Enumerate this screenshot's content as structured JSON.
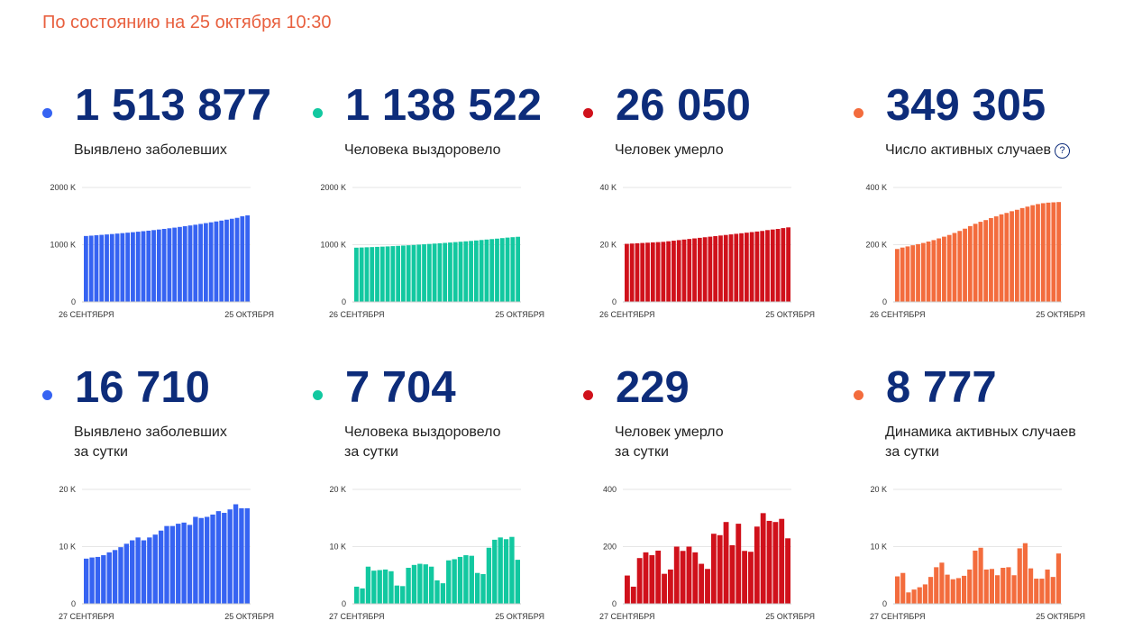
{
  "status_text": "По состоянию на 25 октября 10:30",
  "cards": [
    {
      "value": "1 513 877",
      "label_line1": "Выявлено заболевших",
      "label_line2": "",
      "help_icon": false,
      "color": "#3663f2",
      "chart": {
        "type": "bar",
        "yticks": [
          "2000 K",
          "1000 K",
          "0"
        ],
        "ylim": [
          0,
          2000
        ],
        "x_start": "26 СЕНТЯБРЯ",
        "x_end": "25 ОКТЯБРЯ",
        "values": [
          1152,
          1158,
          1165,
          1172,
          1179,
          1186,
          1194,
          1202,
          1210,
          1218,
          1227,
          1236,
          1245,
          1255,
          1265,
          1276,
          1287,
          1298,
          1310,
          1323,
          1336,
          1349,
          1363,
          1377,
          1391,
          1406,
          1421,
          1437,
          1453,
          1469,
          1497,
          1513
        ]
      }
    },
    {
      "value": "1 138 522",
      "label_line1": "Человека выздоровело",
      "label_line2": "",
      "help_icon": false,
      "color": "#12c8a0",
      "chart": {
        "type": "bar",
        "yticks": [
          "2000 K",
          "1000 K",
          "0"
        ],
        "ylim": [
          0,
          2000
        ],
        "x_start": "26 СЕНТЯБРЯ",
        "x_end": "25 ОКТЯБРЯ",
        "values": [
          948,
          951,
          955,
          958,
          962,
          966,
          970,
          975,
          980,
          985,
          990,
          995,
          1001,
          1007,
          1013,
          1019,
          1025,
          1031,
          1038,
          1045,
          1052,
          1059,
          1066,
          1074,
          1082,
          1090,
          1098,
          1106,
          1115,
          1124,
          1131,
          1138
        ]
      }
    },
    {
      "value": "26 050",
      "label_line1": "Человек умерло",
      "label_line2": "",
      "help_icon": false,
      "color": "#d0111b",
      "chart": {
        "type": "bar",
        "yticks": [
          "40 K",
          "20 K",
          "0"
        ],
        "ylim": [
          0,
          40
        ],
        "x_start": "26 СЕНТЯБРЯ",
        "x_end": "25 ОКТЯБРЯ",
        "values": [
          20.3,
          20.4,
          20.5,
          20.6,
          20.7,
          20.8,
          20.9,
          21.0,
          21.2,
          21.4,
          21.6,
          21.8,
          22.0,
          22.2,
          22.4,
          22.6,
          22.8,
          23.0,
          23.2,
          23.4,
          23.6,
          23.8,
          24.0,
          24.2,
          24.4,
          24.6,
          24.8,
          25.1,
          25.3,
          25.5,
          25.8,
          26.05
        ]
      }
    },
    {
      "value": "349 305",
      "label_line1": "Число активных случаев",
      "label_line2": "",
      "help_icon": true,
      "color": "#f36c3d",
      "chart": {
        "type": "bar",
        "yticks": [
          "400 K",
          "200 K",
          "0"
        ],
        "ylim": [
          0,
          400
        ],
        "x_start": "26 СЕНТЯБРЯ",
        "x_end": "25 ОКТЯБРЯ",
        "values": [
          185,
          190,
          194,
          198,
          202,
          206,
          211,
          216,
          222,
          228,
          234,
          241,
          248,
          256,
          265,
          273,
          280,
          286,
          293,
          299,
          306,
          311,
          317,
          322,
          328,
          333,
          338,
          342,
          345,
          347,
          348,
          349
        ]
      }
    },
    {
      "value": "16 710",
      "label_line1": "Выявлено заболевших",
      "label_line2": "за сутки",
      "help_icon": false,
      "color": "#3663f2",
      "chart": {
        "type": "bar",
        "yticks": [
          "20 K",
          "10 K",
          "0"
        ],
        "ylim": [
          0,
          20
        ],
        "x_start": "27 СЕНТЯБРЯ",
        "x_end": "25 ОКТЯБРЯ",
        "values": [
          7.9,
          8.1,
          8.2,
          8.5,
          9.0,
          9.4,
          9.9,
          10.5,
          11.1,
          11.6,
          11.1,
          11.6,
          12.1,
          12.8,
          13.6,
          13.6,
          14.0,
          14.2,
          13.8,
          15.2,
          15.0,
          15.2,
          15.6,
          16.2,
          15.9,
          16.5,
          17.4,
          16.7,
          16.7
        ]
      }
    },
    {
      "value": "7 704",
      "label_line1": "Человека выздоровело",
      "label_line2": "за сутки",
      "help_icon": false,
      "color": "#12c8a0",
      "chart": {
        "type": "bar",
        "yticks": [
          "20 K",
          "10 K",
          "0"
        ],
        "ylim": [
          0,
          20
        ],
        "x_start": "27 СЕНТЯБРЯ",
        "x_end": "25 ОКТЯБРЯ",
        "values": [
          3.0,
          2.7,
          6.5,
          5.8,
          5.9,
          6.0,
          5.7,
          3.2,
          3.1,
          6.3,
          6.8,
          7.0,
          6.9,
          6.5,
          4.1,
          3.6,
          7.6,
          7.8,
          8.2,
          8.5,
          8.4,
          5.4,
          5.2,
          9.8,
          11.2,
          11.6,
          11.3,
          11.7,
          7.7
        ]
      }
    },
    {
      "value": "229",
      "label_line1": "Человек умерло",
      "label_line2": "за сутки",
      "help_icon": false,
      "color": "#d0111b",
      "chart": {
        "type": "bar",
        "yticks": [
          "400",
          "200",
          "0"
        ],
        "ylim": [
          0,
          400
        ],
        "x_start": "27 СЕНТЯБРЯ",
        "x_end": "25 ОКТЯБРЯ",
        "values": [
          99,
          60,
          160,
          180,
          170,
          186,
          105,
          120,
          200,
          185,
          200,
          180,
          140,
          122,
          245,
          240,
          286,
          205,
          280,
          185,
          182,
          270,
          317,
          290,
          286,
          297,
          229
        ]
      }
    },
    {
      "value": "8 777",
      "label_line1": "Динамика активных случаев",
      "label_line2": "за сутки",
      "help_icon": false,
      "color": "#f36c3d",
      "chart": {
        "type": "bar",
        "yticks": [
          "20 K",
          "10 K",
          "0"
        ],
        "ylim": [
          0,
          20
        ],
        "x_start": "27 СЕНТЯБРЯ",
        "x_end": "25 ОКТЯБРЯ",
        "values": [
          4.8,
          5.4,
          2.0,
          2.5,
          2.9,
          3.4,
          4.7,
          6.4,
          7.2,
          5.1,
          4.3,
          4.5,
          4.9,
          6.0,
          9.3,
          9.8,
          6.0,
          6.1,
          5.0,
          6.3,
          6.4,
          5.0,
          9.7,
          10.6,
          6.2,
          4.4,
          4.4,
          6.0,
          4.7,
          8.8
        ]
      }
    }
  ]
}
